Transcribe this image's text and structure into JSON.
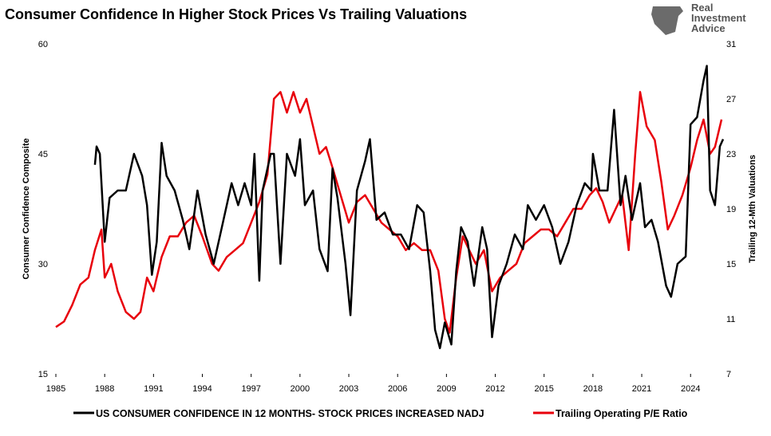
{
  "chart_data": {
    "type": "line",
    "title": "Consumer Confidence In Higher Stock Prices Vs Trailing Valuations",
    "logo_text": [
      "Real",
      "Investment",
      "Advice"
    ],
    "ylabel": "Consumer Confidence Composite",
    "y2label": "Trailing 12-Mth Valuations",
    "xlim": [
      1985,
      2026
    ],
    "xticks": [
      1985,
      1988,
      1991,
      1994,
      1997,
      2000,
      2003,
      2006,
      2009,
      2012,
      2015,
      2018,
      2021,
      2024
    ],
    "ylim": [
      15,
      60
    ],
    "yticks": [
      15,
      30,
      45,
      60
    ],
    "y2lim": [
      7,
      31
    ],
    "y2ticks": [
      7,
      11,
      15,
      19,
      23,
      27,
      31
    ],
    "legend": "bottom",
    "series": [
      {
        "name": "US CONSUMER CONFIDENCE IN 12 MONTHS- STOCK PRICES INCREASED NADJ",
        "color": "#000000",
        "axis": "y",
        "x": [
          1987.4,
          1987.5,
          1987.7,
          1988.0,
          1988.3,
          1988.8,
          1989.3,
          1989.8,
          1990.3,
          1990.6,
          1990.9,
          1991.2,
          1991.5,
          1991.8,
          1992.3,
          1992.8,
          1993.2,
          1993.7,
          1994.2,
          1994.7,
          1995.2,
          1995.8,
          1996.2,
          1996.6,
          1997.0,
          1997.2,
          1997.5,
          1997.7,
          1998.2,
          1998.4,
          1998.8,
          1999.2,
          1999.7,
          2000.0,
          2000.3,
          2000.8,
          2001.2,
          2001.7,
          2002.0,
          2002.3,
          2002.8,
          2003.1,
          2003.5,
          2004.0,
          2004.3,
          2004.7,
          2005.2,
          2005.7,
          2006.2,
          2006.7,
          2007.2,
          2007.6,
          2008.0,
          2008.3,
          2008.6,
          2008.9,
          2009.3,
          2009.6,
          2009.9,
          2010.3,
          2010.7,
          2011.2,
          2011.5,
          2011.8,
          2012.2,
          2012.7,
          2013.2,
          2013.7,
          2014.0,
          2014.5,
          2015.0,
          2015.5,
          2016.0,
          2016.5,
          2017.0,
          2017.5,
          2017.9,
          2018.0,
          2018.4,
          2018.9,
          2019.3,
          2019.7,
          2020.0,
          2020.4,
          2020.9,
          2021.2,
          2021.6,
          2022.0,
          2022.5,
          2022.8,
          2023.2,
          2023.7,
          2024.0,
          2024.4,
          2024.8,
          2025.0,
          2025.2,
          2025.5,
          2025.8,
          2026.0
        ],
        "values": [
          43.5,
          46,
          45,
          33,
          39,
          40,
          40,
          45,
          42,
          38,
          28.5,
          33,
          46.5,
          42,
          40,
          36,
          32,
          40,
          34,
          30,
          35,
          41,
          38,
          41,
          38,
          45,
          27.7,
          40,
          45,
          45,
          30,
          45,
          42,
          47,
          38,
          40,
          32,
          29,
          43,
          39,
          30,
          23,
          40,
          44,
          47,
          36,
          37,
          34,
          34,
          32,
          38,
          37,
          29,
          21,
          18.5,
          22,
          19,
          29,
          35,
          33,
          27,
          35,
          32,
          20,
          27,
          30,
          34,
          32,
          38,
          36,
          38,
          35,
          30,
          33,
          38,
          41,
          40,
          45,
          40,
          40,
          51,
          38,
          42,
          36,
          41,
          35,
          36,
          33,
          27,
          25.5,
          30,
          31,
          49,
          50,
          55,
          57,
          40,
          38,
          46,
          47
        ]
      },
      {
        "name": "Trailing Operating P/E Ratio",
        "color": "#e8000b",
        "axis": "y2",
        "x": [
          1985.0,
          1985.5,
          1986.0,
          1986.5,
          1987.0,
          1987.4,
          1987.8,
          1988.0,
          1988.4,
          1988.8,
          1989.3,
          1989.8,
          1990.2,
          1990.6,
          1991.0,
          1991.5,
          1992.0,
          1992.5,
          1993.0,
          1993.5,
          1994.0,
          1994.6,
          1995.0,
          1995.5,
          1996.0,
          1996.5,
          1997.0,
          1997.5,
          1998.0,
          1998.4,
          1998.8,
          1999.2,
          1999.6,
          2000.0,
          2000.4,
          2000.8,
          2001.2,
          2001.6,
          2002.0,
          2002.5,
          2003.0,
          2003.5,
          2004.0,
          2004.5,
          2005.0,
          2005.5,
          2006.0,
          2006.5,
          2007.0,
          2007.5,
          2008.0,
          2008.5,
          2008.9,
          2009.2,
          2009.6,
          2010.0,
          2010.4,
          2010.8,
          2011.3,
          2011.8,
          2012.3,
          2012.8,
          2013.3,
          2013.8,
          2014.3,
          2014.8,
          2015.3,
          2015.8,
          2016.3,
          2016.8,
          2017.3,
          2017.8,
          2018.2,
          2018.6,
          2019.0,
          2019.4,
          2019.8,
          2020.2,
          2020.6,
          2020.9,
          2021.3,
          2021.8,
          2022.2,
          2022.6,
          2023.0,
          2023.5,
          2024.0,
          2024.4,
          2024.8,
          2025.2,
          2025.5,
          2025.9
        ],
        "values": [
          10.4,
          10.8,
          12,
          13.5,
          14,
          16,
          17.5,
          14,
          15,
          13,
          11.5,
          11,
          11.5,
          14,
          13,
          15.5,
          17,
          17,
          18,
          18.5,
          17,
          15,
          14.5,
          15.5,
          16,
          16.5,
          18,
          19.5,
          21.5,
          27,
          27.5,
          26,
          27.5,
          26,
          27,
          25,
          23,
          23.5,
          22,
          20,
          18,
          19.5,
          20,
          19,
          18,
          17.5,
          17,
          16,
          16.5,
          16,
          16,
          14.5,
          11,
          10,
          14,
          17,
          16,
          15,
          16,
          13,
          14,
          14.5,
          15,
          16.5,
          17,
          17.5,
          17.5,
          17,
          18,
          19,
          19,
          20,
          20.5,
          19.5,
          18,
          19,
          20,
          16,
          23,
          27.5,
          25,
          24,
          21,
          17.5,
          18.5,
          20,
          22,
          24,
          25.5,
          23,
          23.5,
          25.5
        ]
      }
    ]
  }
}
